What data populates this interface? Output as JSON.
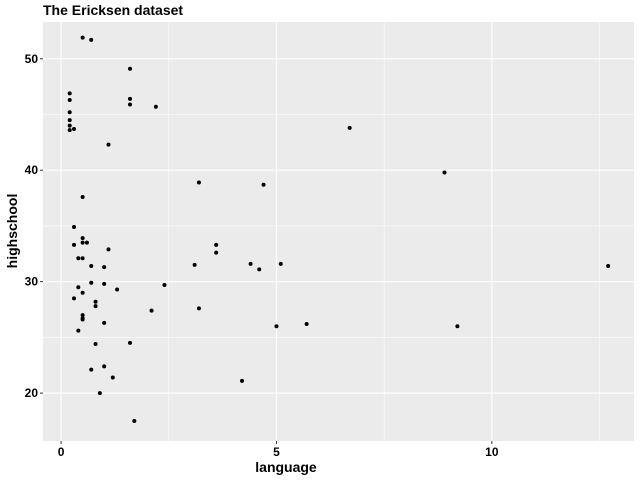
{
  "chart_data": {
    "type": "scatter",
    "title": "The Ericksen dataset",
    "xlabel": "language",
    "ylabel": "highschool",
    "xlim": [
      -0.42,
      13.3
    ],
    "ylim": [
      15.7,
      53.3
    ],
    "xticks": [
      0,
      5,
      10
    ],
    "yticks": [
      20,
      30,
      40,
      50
    ],
    "grid": true,
    "legend": "none",
    "colors": {
      "panel": "#ebebeb",
      "grid_major": "#ffffff",
      "point": "#000000",
      "axis_text": "#4d4d4d",
      "title_text": "#000000"
    },
    "points": [
      {
        "x": 0.2,
        "y": 46.9
      },
      {
        "x": 0.2,
        "y": 46.3
      },
      {
        "x": 0.2,
        "y": 45.2
      },
      {
        "x": 0.2,
        "y": 44.5
      },
      {
        "x": 0.2,
        "y": 44.0
      },
      {
        "x": 0.2,
        "y": 43.6
      },
      {
        "x": 0.3,
        "y": 43.7
      },
      {
        "x": 0.5,
        "y": 51.9
      },
      {
        "x": 0.7,
        "y": 51.7
      },
      {
        "x": 1.6,
        "y": 49.1
      },
      {
        "x": 1.6,
        "y": 46.4
      },
      {
        "x": 1.6,
        "y": 45.9
      },
      {
        "x": 2.2,
        "y": 45.7
      },
      {
        "x": 1.1,
        "y": 42.3
      },
      {
        "x": 6.7,
        "y": 43.8
      },
      {
        "x": 8.9,
        "y": 39.8
      },
      {
        "x": 3.2,
        "y": 38.9
      },
      {
        "x": 4.7,
        "y": 38.7
      },
      {
        "x": 0.5,
        "y": 37.6
      },
      {
        "x": 0.3,
        "y": 34.9
      },
      {
        "x": 0.5,
        "y": 33.9
      },
      {
        "x": 0.5,
        "y": 33.5
      },
      {
        "x": 0.6,
        "y": 33.5
      },
      {
        "x": 0.3,
        "y": 33.3
      },
      {
        "x": 3.6,
        "y": 33.3
      },
      {
        "x": 1.1,
        "y": 32.9
      },
      {
        "x": 3.6,
        "y": 32.6
      },
      {
        "x": 0.4,
        "y": 32.1
      },
      {
        "x": 0.5,
        "y": 32.1
      },
      {
        "x": 5.1,
        "y": 31.6
      },
      {
        "x": 4.4,
        "y": 31.6
      },
      {
        "x": 3.1,
        "y": 31.5
      },
      {
        "x": 0.7,
        "y": 31.4
      },
      {
        "x": 12.7,
        "y": 31.4
      },
      {
        "x": 1.0,
        "y": 31.3
      },
      {
        "x": 4.6,
        "y": 31.1
      },
      {
        "x": 0.7,
        "y": 29.9
      },
      {
        "x": 1.0,
        "y": 29.8
      },
      {
        "x": 2.4,
        "y": 29.7
      },
      {
        "x": 0.4,
        "y": 29.5
      },
      {
        "x": 1.3,
        "y": 29.3
      },
      {
        "x": 0.5,
        "y": 29.0
      },
      {
        "x": 0.3,
        "y": 28.5
      },
      {
        "x": 0.8,
        "y": 28.2
      },
      {
        "x": 0.8,
        "y": 27.8
      },
      {
        "x": 3.2,
        "y": 27.6
      },
      {
        "x": 2.1,
        "y": 27.4
      },
      {
        "x": 0.5,
        "y": 27.0
      },
      {
        "x": 0.5,
        "y": 26.7
      },
      {
        "x": 0.5,
        "y": 26.6
      },
      {
        "x": 1.0,
        "y": 26.3
      },
      {
        "x": 5.7,
        "y": 26.2
      },
      {
        "x": 5.0,
        "y": 26.0
      },
      {
        "x": 9.2,
        "y": 26.0
      },
      {
        "x": 0.4,
        "y": 25.6
      },
      {
        "x": 0.8,
        "y": 24.4
      },
      {
        "x": 1.6,
        "y": 24.5
      },
      {
        "x": 1.0,
        "y": 22.4
      },
      {
        "x": 0.7,
        "y": 22.1
      },
      {
        "x": 1.2,
        "y": 21.4
      },
      {
        "x": 4.2,
        "y": 21.1
      },
      {
        "x": 0.9,
        "y": 20.0
      },
      {
        "x": 1.7,
        "y": 17.5
      }
    ]
  }
}
